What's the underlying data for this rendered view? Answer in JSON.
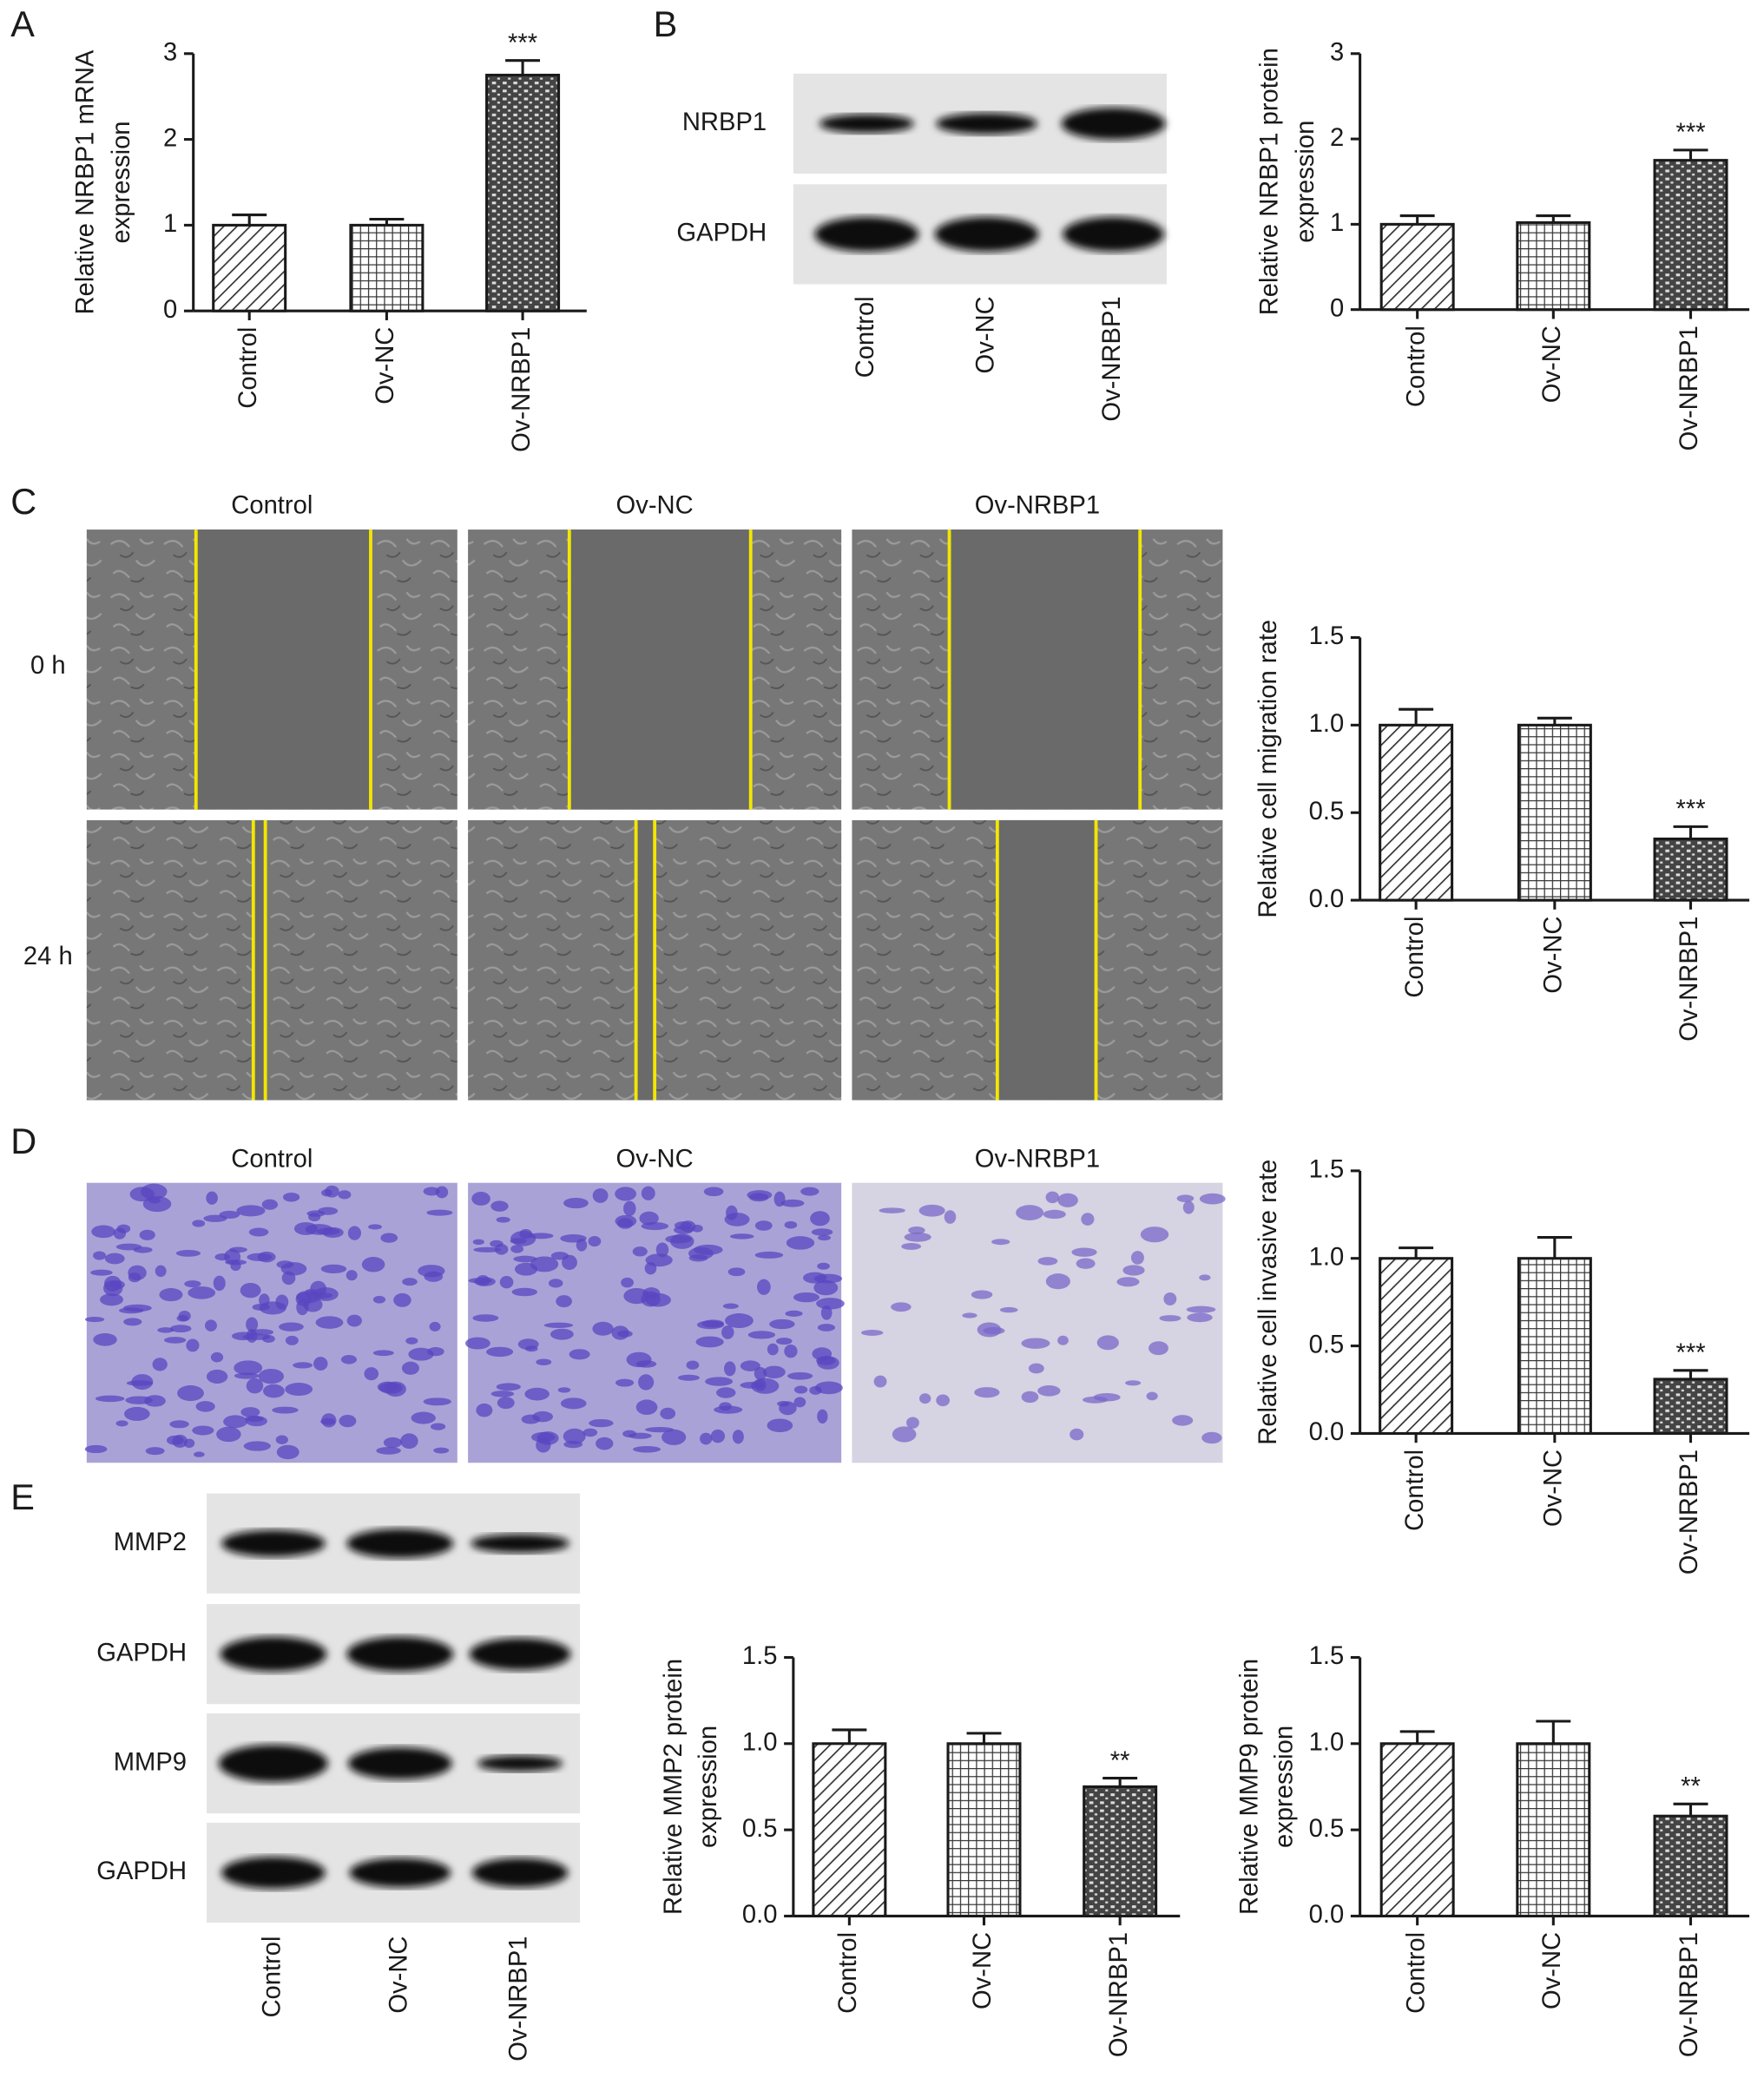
{
  "panel_labels": [
    "A",
    "B",
    "C",
    "D",
    "E"
  ],
  "blots": [
    {
      "bands": [
        "NRBP1",
        "GAPDH"
      ],
      "lanes": [
        "Control",
        "Ov-NC",
        "Ov-NRBP1"
      ]
    },
    {
      "bands": [
        "MMP2",
        "GAPDH",
        "MMP9",
        "GAPDH"
      ],
      "lanes": [
        "Control",
        "Ov-NC",
        "Ov-NRBP1"
      ]
    }
  ],
  "scratch": {
    "columns": [
      "Control",
      "Ov-NC",
      "Ov-NRBP1"
    ],
    "rows": [
      "0 h",
      "24 h"
    ]
  },
  "transwell": {
    "columns": [
      "Control",
      "Ov-NC",
      "Ov-NRBP1"
    ]
  },
  "bar_patterns": [
    "diagonal",
    "grid",
    "brick"
  ],
  "chart_data": [
    {
      "type": "bar",
      "ylabel": [
        "Relative NRBP1 mRNA",
        "expression"
      ],
      "categories": [
        "Control",
        "Ov-NC",
        "Ov-NRBP1"
      ],
      "values": [
        1.0,
        1.0,
        2.75
      ],
      "errors": [
        0.12,
        0.07,
        0.17
      ],
      "annotations": [
        null,
        null,
        "***"
      ],
      "ylim": [
        0,
        3
      ],
      "yticks": [
        0,
        1,
        2,
        3
      ]
    },
    {
      "type": "bar",
      "ylabel": [
        "Relative NRBP1 protein",
        "expression"
      ],
      "categories": [
        "Control",
        "Ov-NC",
        "Ov-NRBP1"
      ],
      "values": [
        1.0,
        1.02,
        1.75
      ],
      "errors": [
        0.1,
        0.08,
        0.12
      ],
      "annotations": [
        null,
        null,
        "***"
      ],
      "ylim": [
        0,
        3
      ],
      "yticks": [
        0,
        1,
        2,
        3
      ]
    },
    {
      "type": "bar",
      "ylabel": [
        "Relative cell migration rate"
      ],
      "categories": [
        "Control",
        "Ov-NC",
        "Ov-NRBP1"
      ],
      "values": [
        1.0,
        1.0,
        0.35
      ],
      "errors": [
        0.09,
        0.04,
        0.07
      ],
      "annotations": [
        null,
        null,
        "***"
      ],
      "ylim": [
        0,
        1.5
      ],
      "yticks": [
        {
          "value": 0,
          "label": "0.0"
        },
        0.5,
        {
          "value": 1,
          "label": "1.0"
        },
        1.5
      ]
    },
    {
      "type": "bar",
      "ylabel": [
        "Relative cell invasive rate"
      ],
      "categories": [
        "Control",
        "Ov-NC",
        "Ov-NRBP1"
      ],
      "values": [
        1.0,
        1.0,
        0.31
      ],
      "errors": [
        0.06,
        0.12,
        0.05
      ],
      "annotations": [
        null,
        null,
        "***"
      ],
      "ylim": [
        0,
        1.5
      ],
      "yticks": [
        {
          "value": 0,
          "label": "0.0"
        },
        0.5,
        {
          "value": 1,
          "label": "1.0"
        },
        1.5
      ]
    },
    {
      "type": "bar",
      "ylabel": [
        "Relative MMP2 protein",
        "expression"
      ],
      "categories": [
        "Control",
        "Ov-NC",
        "Ov-NRBP1"
      ],
      "values": [
        1.0,
        1.0,
        0.75
      ],
      "errors": [
        0.08,
        0.06,
        0.05
      ],
      "annotations": [
        null,
        null,
        "**"
      ],
      "ylim": [
        0,
        1.5
      ],
      "yticks": [
        {
          "value": 0,
          "label": "0.0"
        },
        0.5,
        {
          "value": 1,
          "label": "1.0"
        },
        1.5
      ]
    },
    {
      "type": "bar",
      "ylabel": [
        "Relative MMP9 protein",
        "expression"
      ],
      "categories": [
        "Control",
        "Ov-NC",
        "Ov-NRBP1"
      ],
      "values": [
        1.0,
        1.0,
        0.58
      ],
      "errors": [
        0.07,
        0.13,
        0.07
      ],
      "annotations": [
        null,
        null,
        "**"
      ],
      "ylim": [
        0,
        1.5
      ],
      "yticks": [
        {
          "value": 0,
          "label": "0.0"
        },
        0.5,
        {
          "value": 1,
          "label": "1.0"
        },
        1.5
      ]
    }
  ]
}
